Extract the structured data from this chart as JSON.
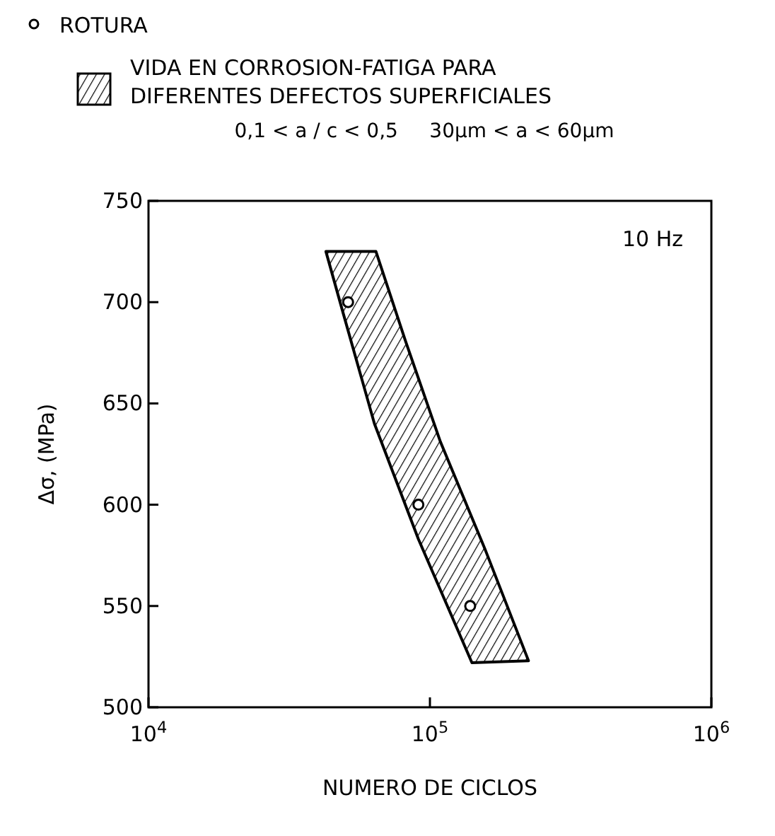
{
  "chart_data": {
    "type": "scatter",
    "xlabel": "NUMERO DE CICLOS",
    "ylabel": "Δσ, (MPa)",
    "log": "x",
    "xlim": [
      10000,
      1000000
    ],
    "ylim": [
      500,
      750
    ],
    "xticks": [
      {
        "value": 10000,
        "label": "10$^{4}$"
      },
      {
        "value": 100000,
        "label": "10$^{5}$"
      },
      {
        "value": 1000000,
        "label": "10$^{6}$"
      }
    ],
    "yticks": [
      500,
      550,
      600,
      650,
      700,
      750
    ],
    "grid": false,
    "legend": "top left",
    "annotations": [
      "0,1 < a / c < 0,5     30μm < a < 60μm",
      "10 Hz"
    ],
    "series": [
      {
        "name": "ROTURA",
        "marker": "circle",
        "color": "#000000",
        "x": [
          51200,
          91000,
          139000
        ],
        "values": [
          700,
          600,
          550
        ]
      },
      {
        "name": "VIDA EN CORROSION-FATIGA PARA DIFERENTES DEFECTOS SUPERFICIALES",
        "type": "area",
        "color": "#000000",
        "x": [
          42700,
          49300,
          63500,
          91000,
          141000,
          224000,
          157000,
          109000,
          81800,
          64300,
          42700
        ],
        "values": [
          725,
          694,
          640,
          583,
          522,
          523,
          578,
          631,
          681,
          725,
          725
        ]
      }
    ]
  }
}
